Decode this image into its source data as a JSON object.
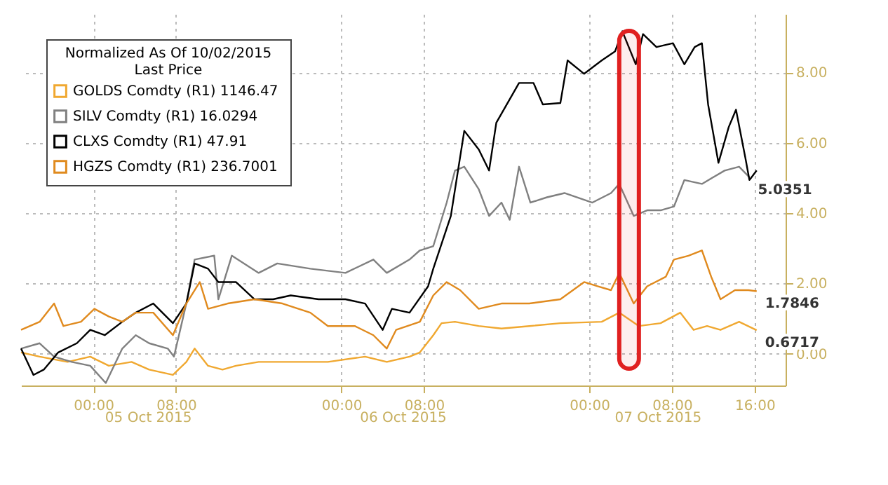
{
  "chart_data": {
    "type": "line",
    "legend_title": "Normalized As Of 10/02/2015\nLast Price",
    "legend": "top left",
    "grid": true,
    "marker": "none",
    "line_style": "solid",
    "xlim": [
      "2015-10-04T17:00",
      "2015-10-07T19:00"
    ],
    "xticks": [
      {
        "value": "2015-10-05T00:00",
        "label": "00:00"
      },
      {
        "value": "2015-10-05T08:00",
        "label": "08:00"
      },
      {
        "value": "2015-10-06T00:00",
        "label": "00:00"
      },
      {
        "value": "2015-10-06T08:00",
        "label": "08:00"
      },
      {
        "value": "2015-10-07T00:00",
        "label": "00:00"
      },
      {
        "value": "2015-10-07T08:00",
        "label": "08:00"
      },
      {
        "value": "2015-10-07T16:00",
        "label": "16:00"
      }
    ],
    "ylim": [
      -0.9,
      9.66
    ],
    "yticks": [
      {
        "value": 0,
        "label": "0.00"
      },
      {
        "value": 2,
        "label": "2.00"
      },
      {
        "value": 4,
        "label": "4.00"
      },
      {
        "value": 6,
        "label": "6.00"
      },
      {
        "value": 8,
        "label": "8.00"
      }
    ],
    "series": [
      {
        "name": "GOLDS Comdty  (R1) 1146.47",
        "color": "#f0a830",
        "x": [
          "2015-10-04T17:00",
          "2015-10-04T18:48",
          "2015-10-04T21:30",
          "2015-10-04T23:42",
          "2015-10-05T01:30",
          "2015-10-05T03:42",
          "2015-10-05T05:24",
          "2015-10-05T07:42",
          "2015-10-05T09:00",
          "2015-10-05T09:48",
          "2015-10-05T11:06",
          "2015-10-05T12:30",
          "2015-10-05T13:48",
          "2015-10-05T16:00",
          "2015-10-05T19:36",
          "2015-10-05T22:42",
          "2015-10-06T02:18",
          "2015-10-06T04:24",
          "2015-10-06T06:36",
          "2015-10-06T07:36",
          "2015-10-06T08:54",
          "2015-10-06T09:42",
          "2015-10-06T11:00",
          "2015-10-06T13:18",
          "2015-10-06T15:30",
          "2015-10-06T18:12",
          "2015-10-06T21:12",
          "2015-10-07T01:12",
          "2015-10-07T02:54",
          "2015-10-07T04:48",
          "2015-10-07T06:54",
          "2015-10-07T08:48",
          "2015-10-07T10:06",
          "2015-10-07T11:24",
          "2015-10-07T12:42",
          "2015-10-07T14:30",
          "2015-10-07T16:12"
        ],
        "values": [
          0.04,
          -0.08,
          -0.23,
          -0.08,
          -0.34,
          -0.23,
          -0.45,
          -0.6,
          -0.23,
          0.15,
          -0.34,
          -0.45,
          -0.34,
          -0.23,
          -0.23,
          -0.23,
          -0.08,
          -0.23,
          -0.08,
          0.04,
          0.53,
          0.87,
          0.91,
          0.79,
          0.72,
          0.79,
          0.87,
          0.91,
          1.17,
          0.79,
          0.87,
          1.17,
          0.68,
          0.79,
          0.68,
          0.91,
          0.67
        ]
      },
      {
        "name": "SILV Comdty  (R1) 16.0294",
        "color": "#808080",
        "x": [
          "2015-10-04T17:00",
          "2015-10-04T18:48",
          "2015-10-04T20:12",
          "2015-10-04T21:54",
          "2015-10-04T23:42",
          "2015-10-05T01:12",
          "2015-10-05T02:48",
          "2015-10-05T04:06",
          "2015-10-05T05:24",
          "2015-10-05T07:12",
          "2015-10-05T07:48",
          "2015-10-05T09:00",
          "2015-10-05T09:48",
          "2015-10-05T11:42",
          "2015-10-05T12:06",
          "2015-10-05T13:24",
          "2015-10-05T16:00",
          "2015-10-05T17:48",
          "2015-10-05T21:00",
          "2015-10-06T00:24",
          "2015-10-06T03:06",
          "2015-10-06T04:24",
          "2015-10-06T06:36",
          "2015-10-06T07:36",
          "2015-10-06T08:54",
          "2015-10-06T10:12",
          "2015-10-06T11:00",
          "2015-10-06T11:54",
          "2015-10-06T13:18",
          "2015-10-06T14:18",
          "2015-10-06T15:30",
          "2015-10-06T16:18",
          "2015-10-06T17:12",
          "2015-10-06T18:18",
          "2015-10-06T19:54",
          "2015-10-06T21:36",
          "2015-10-07T00:18",
          "2015-10-07T02:06",
          "2015-10-07T02:54",
          "2015-10-07T04:18",
          "2015-10-07T05:36",
          "2015-10-07T06:54",
          "2015-10-07T08:12",
          "2015-10-07T09:12",
          "2015-10-07T10:54",
          "2015-10-07T13:06",
          "2015-10-07T14:30",
          "2015-10-07T15:30"
        ],
        "values": [
          0.15,
          0.3,
          -0.08,
          -0.23,
          -0.34,
          -0.83,
          0.15,
          0.53,
          0.3,
          0.15,
          -0.08,
          1.43,
          2.68,
          2.79,
          1.55,
          2.79,
          2.3,
          2.57,
          2.42,
          2.3,
          2.68,
          2.3,
          2.68,
          2.94,
          3.06,
          4.3,
          5.21,
          5.32,
          4.68,
          3.92,
          4.3,
          3.81,
          5.32,
          4.3,
          4.45,
          4.57,
          4.3,
          4.57,
          4.83,
          3.92,
          4.08,
          4.08,
          4.19,
          4.94,
          4.83,
          5.21,
          5.32,
          5.02
        ]
      },
      {
        "name": "CLXS Comdty  (R1) 47.91",
        "color": "#000000",
        "x": [
          "2015-10-04T17:00",
          "2015-10-04T18:12",
          "2015-10-04T19:12",
          "2015-10-04T20:36",
          "2015-10-04T22:24",
          "2015-10-04T23:42",
          "2015-10-05T01:06",
          "2015-10-05T02:48",
          "2015-10-05T04:06",
          "2015-10-05T05:48",
          "2015-10-05T07:42",
          "2015-10-05T09:00",
          "2015-10-05T09:48",
          "2015-10-05T11:06",
          "2015-10-05T12:06",
          "2015-10-05T13:48",
          "2015-10-05T15:36",
          "2015-10-05T17:24",
          "2015-10-05T19:06",
          "2015-10-05T21:48",
          "2015-10-06T00:24",
          "2015-10-06T02:18",
          "2015-10-06T04:00",
          "2015-10-06T04:54",
          "2015-10-06T06:36",
          "2015-10-06T08:24",
          "2015-10-06T08:54",
          "2015-10-06T10:36",
          "2015-10-06T11:54",
          "2015-10-06T13:18",
          "2015-10-06T14:18",
          "2015-10-06T15:00",
          "2015-10-06T17:12",
          "2015-10-06T18:36",
          "2015-10-06T19:30",
          "2015-10-06T21:12",
          "2015-10-06T21:54",
          "2015-10-06T23:30",
          "2015-10-07T01:12",
          "2015-10-07T02:30",
          "2015-10-07T03:12",
          "2015-10-07T04:30",
          "2015-10-07T05:12",
          "2015-10-07T06:30",
          "2015-10-07T08:06",
          "2015-10-07T09:12",
          "2015-10-07T10:12",
          "2015-10-07T10:54",
          "2015-10-07T11:30",
          "2015-10-07T12:30",
          "2015-10-07T13:30",
          "2015-10-07T14:12",
          "2015-10-07T15:06",
          "2015-10-07T15:30",
          "2015-10-07T16:12"
        ],
        "values": [
          0.15,
          -0.6,
          -0.45,
          0.04,
          0.3,
          0.68,
          0.53,
          0.91,
          1.17,
          1.43,
          0.87,
          1.43,
          2.57,
          2.42,
          2.04,
          2.04,
          1.55,
          1.55,
          1.66,
          1.55,
          1.55,
          1.43,
          0.68,
          1.28,
          1.17,
          1.92,
          2.42,
          3.92,
          6.34,
          5.81,
          5.21,
          6.57,
          7.7,
          7.7,
          7.09,
          7.13,
          8.34,
          7.96,
          8.34,
          8.6,
          9.17,
          8.23,
          9.09,
          8.72,
          8.83,
          8.23,
          8.72,
          8.83,
          7.09,
          5.43,
          6.45,
          6.94,
          5.58,
          4.94,
          5.21
        ]
      },
      {
        "name": "HGZS Comdty  (R1) 236.7001",
        "color": "#e08a1e",
        "x": [
          "2015-10-04T17:00",
          "2015-10-04T18:48",
          "2015-10-04T20:12",
          "2015-10-04T21:06",
          "2015-10-04T22:48",
          "2015-10-05T00:06",
          "2015-10-05T01:30",
          "2015-10-05T02:48",
          "2015-10-05T04:06",
          "2015-10-05T05:48",
          "2015-10-05T07:42",
          "2015-10-05T09:00",
          "2015-10-05T10:18",
          "2015-10-05T11:06",
          "2015-10-05T13:00",
          "2015-10-05T15:36",
          "2015-10-05T18:18",
          "2015-10-05T21:00",
          "2015-10-05T22:42",
          "2015-10-06T01:18",
          "2015-10-06T03:06",
          "2015-10-06T04:24",
          "2015-10-06T05:18",
          "2015-10-06T07:36",
          "2015-10-06T08:54",
          "2015-10-06T10:12",
          "2015-10-06T11:30",
          "2015-10-06T13:18",
          "2015-10-06T15:30",
          "2015-10-06T18:12",
          "2015-10-06T21:12",
          "2015-10-06T23:30",
          "2015-10-07T00:48",
          "2015-10-07T02:06",
          "2015-10-07T02:54",
          "2015-10-07T04:18",
          "2015-10-07T05:36",
          "2015-10-07T07:24",
          "2015-10-07T08:12",
          "2015-10-07T09:36",
          "2015-10-07T10:54",
          "2015-10-07T11:48",
          "2015-10-07T12:42",
          "2015-10-07T14:06",
          "2015-10-07T15:24",
          "2015-10-07T16:12"
        ],
        "values": [
          0.68,
          0.91,
          1.43,
          0.79,
          0.91,
          1.28,
          1.06,
          0.91,
          1.17,
          1.17,
          0.53,
          1.43,
          2.04,
          1.28,
          1.43,
          1.55,
          1.43,
          1.17,
          0.79,
          0.79,
          0.53,
          0.15,
          0.68,
          0.91,
          1.66,
          2.04,
          1.81,
          1.28,
          1.43,
          1.43,
          1.55,
          2.04,
          1.92,
          1.81,
          2.3,
          1.43,
          1.92,
          2.19,
          2.68,
          2.79,
          2.94,
          2.19,
          1.55,
          1.81,
          1.81,
          1.78
        ]
      }
    ],
    "bands": [
      {
        "axis": "x",
        "from": "2015-10-07T02:54",
        "to": "2015-10-07T04:48",
        "color": "#e02020"
      }
    ],
    "annotations": [
      {
        "text": "1.7846",
        "x": "2015-10-07T16:12",
        "y": 1.78
      },
      {
        "text": "0.6717",
        "x": "2015-10-07T16:12",
        "y": 0.67
      },
      {
        "text": "5.0351",
        "x": "2015-10-07T15:30",
        "y": 5.02
      },
      "05 Oct 2015",
      "06 Oct 2015",
      "07 Oct 2015"
    ]
  }
}
